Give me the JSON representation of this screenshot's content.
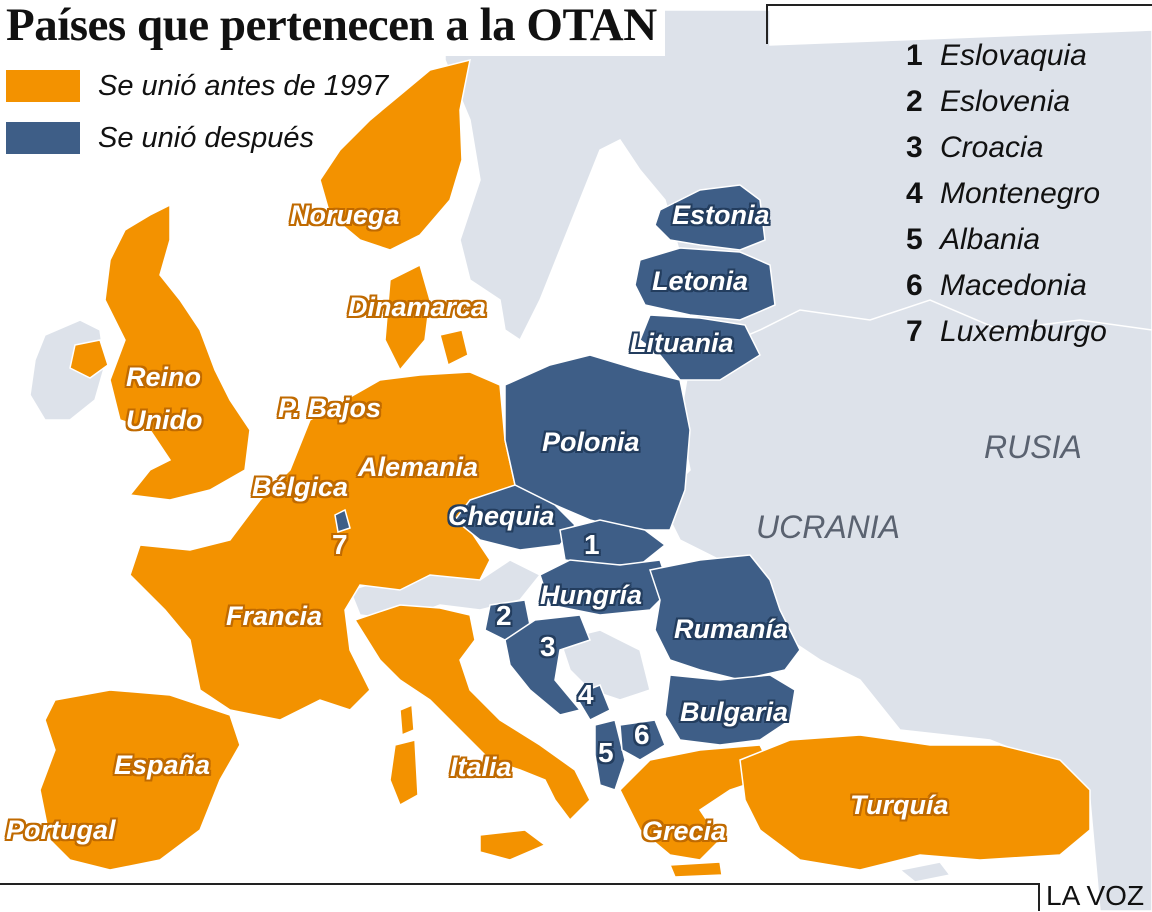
{
  "title": "Países que pertenecen a la OTAN",
  "colors": {
    "sea": "#ffffff",
    "land": "#dde2ea",
    "before_1997": "#f39200",
    "after": "#3e5e87",
    "border": "#ffffff"
  },
  "legend": [
    {
      "label": "Se unió antes de 1997",
      "color": "#f39200"
    },
    {
      "label": "Se unió después",
      "color": "#3e5e87"
    }
  ],
  "key": [
    {
      "num": "1",
      "name": "Eslovaquia"
    },
    {
      "num": "2",
      "name": "Eslovenia"
    },
    {
      "num": "3",
      "name": "Croacia"
    },
    {
      "num": "4",
      "name": "Montenegro"
    },
    {
      "num": "5",
      "name": "Albania"
    },
    {
      "num": "6",
      "name": "Macedonia"
    },
    {
      "num": "7",
      "name": "Luxemburgo"
    }
  ],
  "countries_before": [
    "Noruega",
    "Dinamarca",
    "Reino Unido",
    "P. Bajos",
    "Bélgica",
    "Alemania",
    "Francia",
    "España",
    "Portugal",
    "Italia",
    "Grecia",
    "Turquía"
  ],
  "countries_after": [
    "Estonia",
    "Letonia",
    "Lituania",
    "Polonia",
    "Chequia",
    "Hungría",
    "Rumanía",
    "Bulgaria"
  ],
  "countries_non_member": [
    "RUSIA",
    "UCRANIA"
  ],
  "labels": {
    "noruega": "Noruega",
    "dinamarca": "Dinamarca",
    "reino": "Reino",
    "unido": "Unido",
    "pbajos": "P. Bajos",
    "belgica": "Bélgica",
    "alemania": "Alemania",
    "francia": "Francia",
    "espana": "España",
    "portugal": "Portugal",
    "italia": "Italia",
    "grecia": "Grecia",
    "turquia": "Turquía",
    "estonia": "Estonia",
    "letonia": "Letonia",
    "lituania": "Lituania",
    "polonia": "Polonia",
    "chequia": "Chequia",
    "hungria": "Hungría",
    "rumania": "Rumanía",
    "bulgaria": "Bulgaria",
    "rusia": "RUSIA",
    "ucrania": "UCRANIA",
    "n1": "1",
    "n2": "2",
    "n3": "3",
    "n4": "4",
    "n5": "5",
    "n6": "6",
    "n7": "7"
  },
  "source": "LA VOZ"
}
